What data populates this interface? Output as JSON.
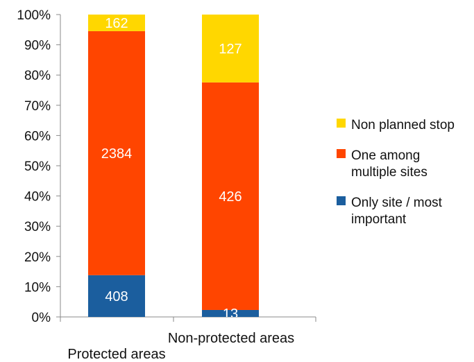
{
  "chart_data": {
    "type": "bar",
    "stacked": true,
    "normalized": true,
    "categories": [
      "Protected areas",
      "Non-protected areas"
    ],
    "series": [
      {
        "name": "Only site / most important",
        "values": [
          408,
          13
        ],
        "color": "#1B5E9E"
      },
      {
        "name": "One among multiple sites",
        "values": [
          2384,
          426
        ],
        "color": "#FF4500"
      },
      {
        "name": "Non planned stop",
        "values": [
          162,
          127
        ],
        "color": "#FFD700"
      }
    ],
    "ylim": [
      0,
      100
    ],
    "y_ticks": [
      "0%",
      "10%",
      "20%",
      "30%",
      "40%",
      "50%",
      "60%",
      "70%",
      "80%",
      "90%",
      "100%"
    ],
    "legend_position": "right",
    "legend": [
      {
        "lines": [
          "Non planned stop"
        ],
        "color": "#FFD700"
      },
      {
        "lines": [
          "One among",
          "multiple sites"
        ],
        "color": "#FF4500"
      },
      {
        "lines": [
          "Only site / most",
          "important"
        ],
        "color": "#1B5E9E"
      }
    ],
    "grid": false
  }
}
